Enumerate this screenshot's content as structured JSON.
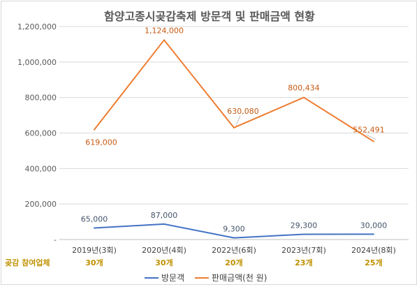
{
  "chart_data": {
    "type": "line",
    "title": "함양고종시곶감축제 방문객 및 판매금액  현황",
    "categories": [
      "2019년(3회)",
      "2020년(4회)",
      "2022년(6회)",
      "2023년(7회)",
      "2024년(8회)"
    ],
    "y_ticks": [
      "1,200,000",
      "1,000,000",
      "800,000",
      "600,000",
      "400,000",
      "200,000",
      "-"
    ],
    "ylim": [
      0,
      1200000
    ],
    "grid": true,
    "legend_position": "bottom",
    "series": [
      {
        "name": "방문객",
        "color": "#4472c4",
        "values": [
          65000,
          87000,
          9300,
          29300,
          30000
        ],
        "labels": [
          "65,000",
          "87,000",
          "9,300",
          "29,300",
          "30,000"
        ]
      },
      {
        "name": "판매금액(천 원)",
        "color": "#ed7d31",
        "values": [
          619000,
          1124000,
          630080,
          800434,
          552491
        ],
        "labels": [
          "619,000",
          "1,124,000",
          "630,080",
          "800,434",
          "552,491"
        ]
      }
    ],
    "extra_row": {
      "label": "곶감 참여업체",
      "values": [
        "30개",
        "30개",
        "20개",
        "23개",
        "25개"
      ],
      "color": "#bf9000"
    }
  }
}
